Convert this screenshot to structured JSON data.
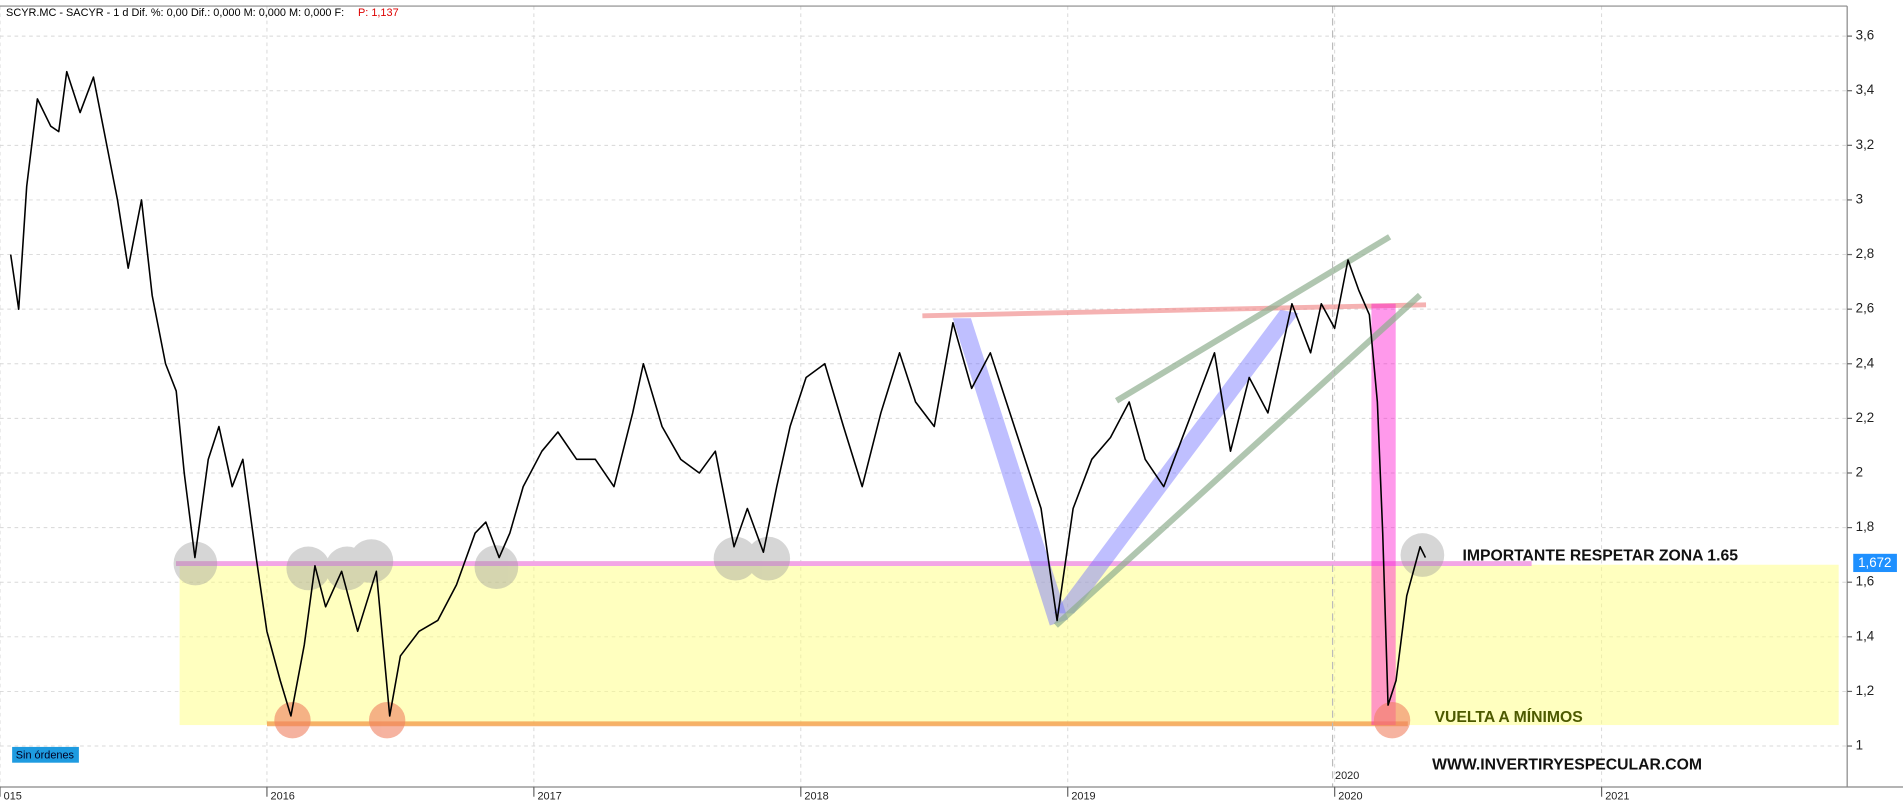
{
  "chart_data": {
    "type": "line",
    "header": "SCYR.MC - SACYR -  1 d  Dif. %: 0,00  Dif.: 0,000  M: 0,000  M: 0,000  F:",
    "header_price": "P: 1,137",
    "orders_badge": "Sin órdenes",
    "annotations": [
      "IMPORTANTE RESPETAR ZONA 1.65",
      "VUELTA A MÍNIMOS",
      "WWW.INVERTIRYESPECULAR.COM"
    ],
    "crosshair_label": "2020",
    "last_price": "1,672",
    "color": "#000000",
    "grid": true,
    "xlim": [
      2015,
      2021.92
    ],
    "ylim": [
      0.85,
      3.71
    ],
    "xticks": [
      {
        "value": 2015,
        "label": "015"
      },
      2016,
      2017,
      2018,
      2019,
      2020,
      2021
    ],
    "yticks": [
      1,
      {
        "value": 1.2,
        "label": "1,2"
      },
      {
        "value": 1.4,
        "label": "1,4"
      },
      {
        "value": 1.6,
        "label": "1,6"
      },
      {
        "value": 1.8,
        "label": "1,8"
      },
      2,
      {
        "value": 2.2,
        "label": "2,2"
      },
      {
        "value": 2.4,
        "label": "2,4"
      },
      {
        "value": 2.6,
        "label": "2,6"
      },
      {
        "value": 2.8,
        "label": "2,8"
      },
      3,
      {
        "value": 3.2,
        "label": "3,2"
      },
      {
        "value": 3.4,
        "label": "3,4"
      },
      {
        "value": 3.6,
        "label": "3,6"
      }
    ],
    "x": [
      2015.04,
      2015.07,
      2015.1,
      2015.14,
      2015.19,
      2015.22,
      2015.25,
      2015.3,
      2015.35,
      2015.39,
      2015.44,
      2015.48,
      2015.53,
      2015.57,
      2015.62,
      2015.66,
      2015.69,
      2015.73,
      2015.78,
      2015.82,
      2015.87,
      2015.91,
      2015.96,
      2016.0,
      2016.05,
      2016.09,
      2016.14,
      2016.18,
      2016.22,
      2016.28,
      2016.34,
      2016.41,
      2016.46,
      2016.5,
      2016.57,
      2016.64,
      2016.71,
      2016.78,
      2016.82,
      2016.87,
      2016.91,
      2016.96,
      2017.03,
      2017.09,
      2017.16,
      2017.23,
      2017.3,
      2017.37,
      2017.41,
      2017.48,
      2017.55,
      2017.62,
      2017.68,
      2017.75,
      2017.8,
      2017.86,
      2017.91,
      2017.96,
      2018.02,
      2018.09,
      2018.16,
      2018.23,
      2018.3,
      2018.37,
      2018.43,
      2018.5,
      2018.57,
      2018.64,
      2018.71,
      2018.77,
      2018.84,
      2018.9,
      2018.96,
      2019.02,
      2019.09,
      2019.16,
      2019.23,
      2019.29,
      2019.36,
      2019.43,
      2019.5,
      2019.55,
      2019.61,
      2019.68,
      2019.75,
      2019.8,
      2019.84,
      2019.91,
      2019.95,
      2020.0,
      2020.05,
      2020.09,
      2020.13,
      2020.16,
      2020.18,
      2020.2,
      2020.23,
      2020.27,
      2020.32,
      2020.34
    ],
    "values": [
      2.8,
      2.6,
      3.05,
      3.37,
      3.27,
      3.25,
      3.47,
      3.32,
      3.45,
      3.25,
      3.0,
      2.75,
      3.0,
      2.65,
      2.4,
      2.3,
      2.0,
      1.69,
      2.05,
      2.17,
      1.95,
      2.05,
      1.69,
      1.42,
      1.24,
      1.11,
      1.37,
      1.66,
      1.51,
      1.64,
      1.42,
      1.64,
      1.11,
      1.33,
      1.42,
      1.46,
      1.59,
      1.78,
      1.82,
      1.69,
      1.78,
      1.95,
      2.08,
      2.15,
      2.05,
      2.05,
      1.95,
      2.22,
      2.4,
      2.17,
      2.05,
      2.0,
      2.08,
      1.73,
      1.87,
      1.71,
      1.95,
      2.17,
      2.35,
      2.4,
      2.17,
      1.95,
      2.22,
      2.44,
      2.26,
      2.17,
      2.55,
      2.31,
      2.44,
      2.26,
      2.05,
      1.87,
      1.46,
      1.87,
      2.05,
      2.13,
      2.26,
      2.05,
      1.95,
      2.13,
      2.31,
      2.44,
      2.08,
      2.35,
      2.22,
      2.44,
      2.62,
      2.44,
      2.62,
      2.53,
      2.78,
      2.67,
      2.58,
      2.26,
      1.78,
      1.15,
      1.24,
      1.55,
      1.73,
      1.69
    ]
  }
}
